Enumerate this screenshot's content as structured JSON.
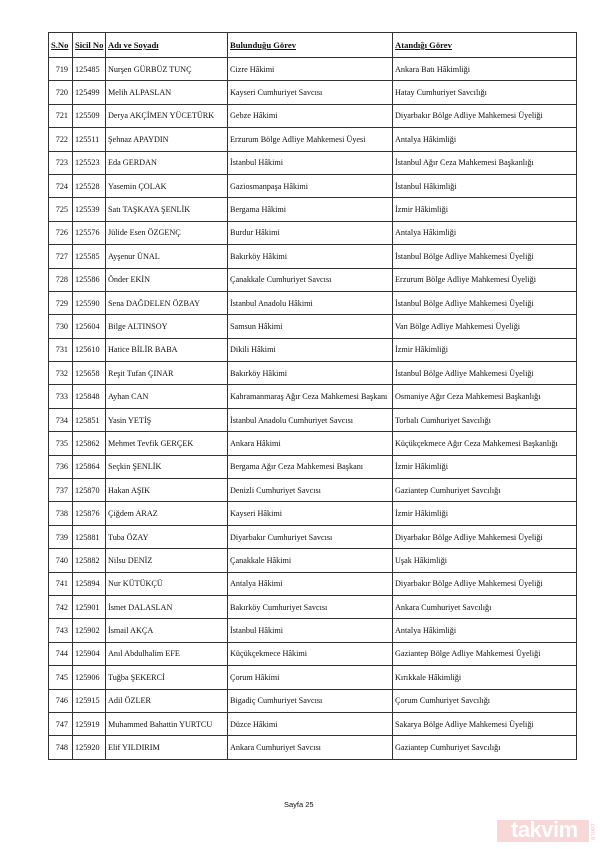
{
  "table": {
    "headers": [
      "S.No",
      "Sicil No",
      "Adı ve Soyadı",
      "Bulunduğu Görev",
      "Atandığı Görev"
    ],
    "rows": [
      [
        "719",
        "125485",
        "Nurşen GÜRBÜZ TUNÇ",
        "Cizre Hâkimi",
        "Ankara Batı Hâkimliği"
      ],
      [
        "720",
        "125499",
        "Melih ALPASLAN",
        "Kayseri Cumhuriyet Savcısı",
        "Hatay Cumhuriyet Savcılığı"
      ],
      [
        "721",
        "125509",
        "Derya AKÇİMEN YÜCETÜRK",
        "Gebze Hâkimi",
        "Diyarbakır Bölge Adliye Mahkemesi Üyeliği"
      ],
      [
        "722",
        "125511",
        "Şehnaz APAYDIN",
        "Erzurum Bölge Adliye Mahkemesi Üyesi",
        "Antalya Hâkimliği"
      ],
      [
        "723",
        "125523",
        "Eda GERDAN",
        "İstanbul Hâkimi",
        "İstanbul Ağır Ceza Mahkemesi Başkanlığı"
      ],
      [
        "724",
        "125528",
        "Yasemin ÇOLAK",
        "Gaziosmanpaşa Hâkimi",
        "İstanbul Hâkimliği"
      ],
      [
        "725",
        "125539",
        "Satı TAŞKAYA ŞENLİK",
        "Bergama Hâkimi",
        "İzmir Hâkimliği"
      ],
      [
        "726",
        "125576",
        "Jülide Esen ÖZGENÇ",
        "Burdur Hâkimi",
        "Antalya Hâkimliği"
      ],
      [
        "727",
        "125585",
        "Ayşenur ÜNAL",
        "Bakırköy Hâkimi",
        "İstanbul Bölge Adliye Mahkemesi Üyeliği"
      ],
      [
        "728",
        "125586",
        "Önder EKİN",
        "Çanakkale Cumhuriyet Savcısı",
        "Erzurum Bölge Adliye Mahkemesi Üyeliği"
      ],
      [
        "729",
        "125590",
        "Sena DAĞDELEN ÖZBAY",
        "İstanbul Anadolu Hâkimi",
        "İstanbul Bölge Adliye Mahkemesi Üyeliği"
      ],
      [
        "730",
        "125604",
        "Bilge ALTINSOY",
        "Samsun Hâkimi",
        "Van Bölge Adliye Mahkemesi Üyeliği"
      ],
      [
        "731",
        "125610",
        "Hatice BİLİR BABA",
        "Dikili Hâkimi",
        "İzmir Hâkimliği"
      ],
      [
        "732",
        "125658",
        "Reşit Tufan ÇINAR",
        "Bakırköy Hâkimi",
        "İstanbul Bölge Adliye Mahkemesi Üyeliği"
      ],
      [
        "733",
        "125848",
        "Ayhan CAN",
        "Kahramanmaraş Ağır Ceza Mahkemesi Başkanı",
        "Osmaniye Ağır Ceza Mahkemesi Başkanlığı"
      ],
      [
        "734",
        "125851",
        "Yasin YETİŞ",
        "İstanbul Anadolu Cumhuriyet Savcısı",
        "Torbalı Cumhuriyet Savcılığı"
      ],
      [
        "735",
        "125862",
        "Mehmet Tevfik GERÇEK",
        "Ankara Hâkimi",
        "Küçükçekmece Ağır Ceza Mahkemesi Başkanlığı"
      ],
      [
        "736",
        "125864",
        "Seçkin ŞENLİK",
        "Bergama Ağır Ceza Mahkemesi Başkanı",
        "İzmir Hâkimliği"
      ],
      [
        "737",
        "125870",
        "Hakan AŞIK",
        "Denizli Cumhuriyet Savcısı",
        "Gaziantep Cumhuriyet Savcılığı"
      ],
      [
        "738",
        "125876",
        "Çiğdem ARAZ",
        "Kayseri Hâkimi",
        "İzmir Hâkimliği"
      ],
      [
        "739",
        "125881",
        "Tuba ÖZAY",
        "Diyarbakır Cumhuriyet Savcısı",
        "Diyarbakır Bölge Adliye Mahkemesi Üyeliği"
      ],
      [
        "740",
        "125882",
        "Nilsu DENİZ",
        "Çanakkale Hâkimi",
        "Uşak Hâkimliği"
      ],
      [
        "741",
        "125894",
        "Nur KÜTÜKÇÜ",
        "Antalya Hâkimi",
        "Diyarbakır Bölge Adliye Mahkemesi Üyeliği"
      ],
      [
        "742",
        "125901",
        "İsmet DALASLAN",
        "Bakırköy Cumhuriyet Savcısı",
        "Ankara Cumhuriyet Savcılığı"
      ],
      [
        "743",
        "125902",
        "İsmail AKÇA",
        "İstanbul Hâkimi",
        "Antalya Hâkimliği"
      ],
      [
        "744",
        "125904",
        "Anıl Abdulhalim EFE",
        "Küçükçekmece Hâkimi",
        "Gaziantep Bölge Adliye Mahkemesi Üyeliği"
      ],
      [
        "745",
        "125906",
        "Tuğba ŞEKERCİ",
        "Çorum Hâkimi",
        "Kırıkkale Hâkimliği"
      ],
      [
        "746",
        "125915",
        "Adil ÖZLER",
        "Bigadiç Cumhuriyet Savcısı",
        "Çorum Cumhuriyet Savcılığı"
      ],
      [
        "747",
        "125919",
        "Muhammed Bahattin YURTCU",
        "Düzce Hâkimi",
        "Sakarya Bölge Adliye Mahkemesi Üyeliği"
      ],
      [
        "748",
        "125920",
        "Elif YILDIRIM",
        "Ankara Cumhuriyet Savcısı",
        "Gaziantep Cumhuriyet Savcılığı"
      ]
    ]
  },
  "footer": {
    "page_label": "Sayfa 25"
  },
  "watermark": {
    "brand": "takvim",
    "tld": ".com.tr",
    "color": "#e57373"
  }
}
